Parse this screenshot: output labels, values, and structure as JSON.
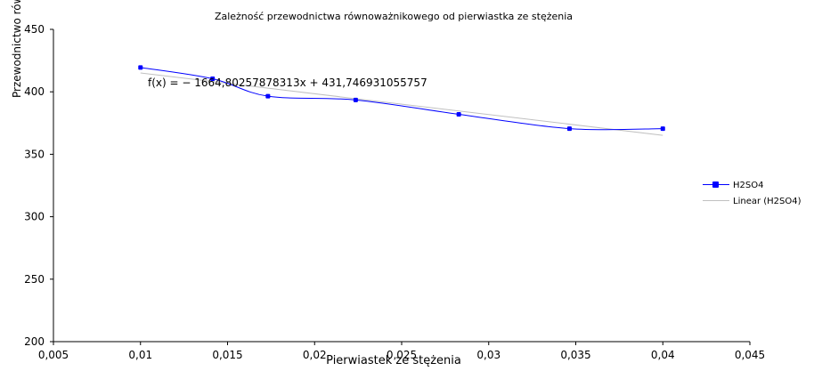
{
  "chart_data": {
    "type": "scatter",
    "title": "Zależność przewodnictwa równoważnikowego od pierwiastka ze stężenia",
    "xlabel": "Pierwiastek ze stężenia",
    "ylabel": "Przewodnictwo równoważnikowe",
    "xlim": [
      0.005,
      0.045
    ],
    "ylim": [
      200,
      450
    ],
    "x_ticks": [
      "0,005",
      "0,01",
      "0,015",
      "0,02",
      "0,025",
      "0,03",
      "0,035",
      "0,04",
      "0,045"
    ],
    "x_tick_values": [
      0.005,
      0.01,
      0.015,
      0.02,
      0.025,
      0.03,
      0.035,
      0.04,
      0.045
    ],
    "y_ticks": [
      "200",
      "250",
      "300",
      "350",
      "400",
      "450"
    ],
    "y_tick_values": [
      200,
      250,
      300,
      350,
      400,
      450
    ],
    "grid": false,
    "legend": "right",
    "series": [
      {
        "name": "H2SO4",
        "color": "#0000ff",
        "x": [
          0.01,
          0.01414,
          0.01732,
          0.02236,
          0.02828,
          0.03464,
          0.04
        ],
        "y": [
          419.5,
          410.5,
          396.5,
          393.5,
          382.0,
          370.5,
          370.5
        ]
      }
    ],
    "trendline": {
      "name": "Linear (H2SO4)",
      "color": "#c0c0c0",
      "slope": -1664.80257878313,
      "intercept": 431.746931055757,
      "equation": "f(x) = − 1664,80257878313x + 431,746931055757"
    }
  }
}
